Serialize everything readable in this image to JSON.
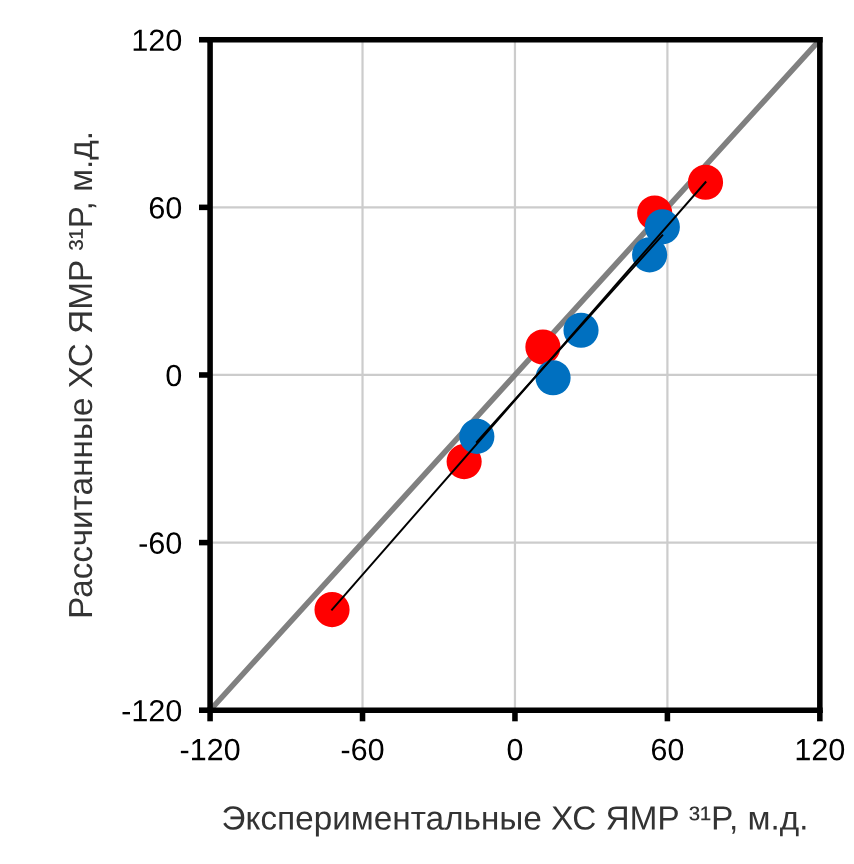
{
  "chart_data": {
    "type": "scatter",
    "xlabel": "Экспериментальные ХС ЯМР ³¹P, м.д.",
    "ylabel": "Рассчитанные ХС ЯМР ³¹P, м.д.",
    "xlim": [
      -120,
      120
    ],
    "ylim": [
      -120,
      120
    ],
    "xticks": [
      -120,
      -60,
      0,
      60,
      120
    ],
    "yticks": [
      -120,
      -60,
      0,
      60,
      120
    ],
    "grid": true,
    "marker": "circle",
    "series": [
      {
        "type": "line",
        "color": "#808080",
        "x": [
          -120,
          120
        ],
        "values": [
          -120,
          120
        ],
        "marker": "none"
      },
      {
        "type": "line",
        "color": "#000000",
        "x": [
          -72,
          75
        ],
        "values": [
          -84,
          69
        ],
        "marker": "none"
      },
      {
        "type": "line",
        "color": "#000000",
        "x": [
          -15,
          58
        ],
        "values": [
          -24,
          50
        ],
        "marker": "none"
      },
      {
        "color": "#ff0000",
        "x": [
          -72,
          -20,
          11,
          55,
          75
        ],
        "values": [
          -84,
          -31,
          10,
          58,
          69
        ]
      },
      {
        "color": "#0070c0",
        "x": [
          -15,
          15,
          26,
          53,
          58
        ],
        "values": [
          -22,
          -1,
          16,
          43,
          53
        ]
      }
    ]
  }
}
